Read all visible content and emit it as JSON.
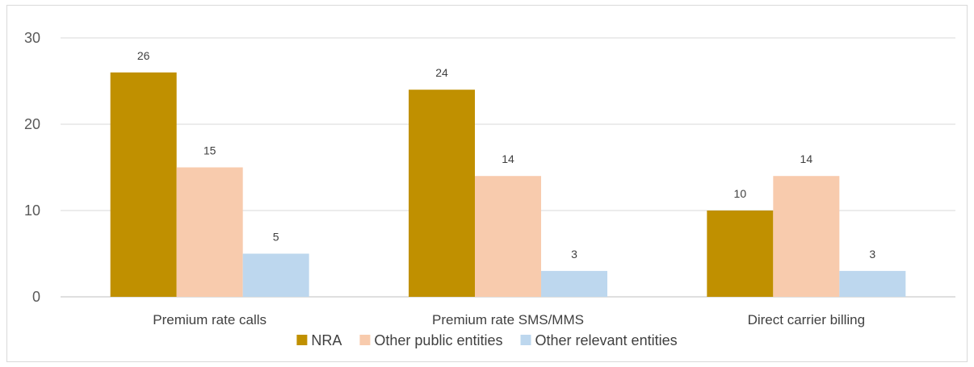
{
  "chart_data": {
    "type": "bar",
    "title": "",
    "xlabel": "",
    "ylabel": "",
    "categories": [
      "Premium rate calls",
      "Premium rate SMS/MMS",
      "Direct carrier billing"
    ],
    "series": [
      {
        "name": "NRA",
        "values": [
          26,
          24,
          10
        ],
        "color": "#c09000"
      },
      {
        "name": "Other public entities",
        "values": [
          15,
          14,
          14
        ],
        "color": "#f8cbad"
      },
      {
        "name": "Other relevant entities",
        "values": [
          5,
          3,
          3
        ],
        "color": "#bdd7ee"
      }
    ],
    "ylim": [
      0,
      30
    ],
    "yticks": [
      0,
      10,
      20,
      30
    ],
    "grid": true,
    "legend": "bottom"
  }
}
